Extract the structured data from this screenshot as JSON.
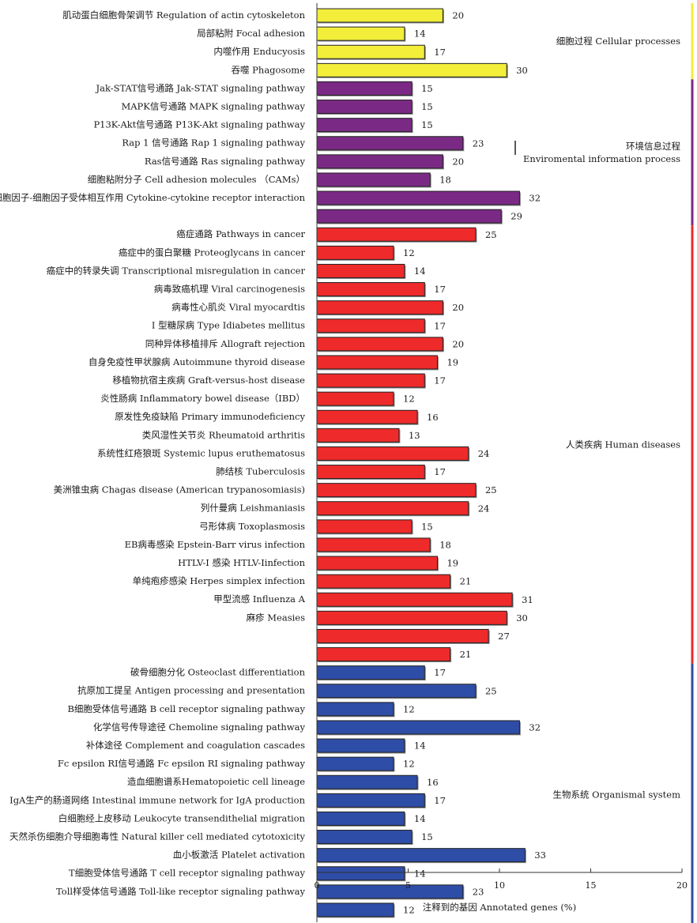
{
  "chart_data": {
    "type": "bar",
    "orientation": "horizontal",
    "xlabel": "注释到的基因 Annotated genes (%)",
    "ylabel": "",
    "xlim": [
      0,
      20
    ],
    "xticks": [
      0,
      5,
      10,
      15,
      20
    ],
    "grid": false,
    "groups": [
      {
        "name": "细胞过程 Cellular processes",
        "label_lines": [
          "细胞过程 Cellular processes"
        ],
        "color": "#f2ee3a",
        "items": [
          {
            "label": "肌动蛋白细胞骨架调节 Regulation of actin cytoskeleton",
            "value": 6.9,
            "count": 20
          },
          {
            "label": "局部粘附 Focal adhesion",
            "value": 4.8,
            "count": 14
          },
          {
            "label": "内噬作用 Enducyosis",
            "value": 5.9,
            "count": 17
          },
          {
            "label": "吞噬 Phagosome",
            "value": 10.4,
            "count": 30
          }
        ]
      },
      {
        "name": "环境信息过程 Enviromental information process",
        "label_lines": [
          "环境信息过程",
          "Enviromental information process"
        ],
        "color": "#7a2a84",
        "items": [
          {
            "label": "Jak-STAT信号通路 Jak-STAT signaling pathway",
            "value": 5.2,
            "count": 15
          },
          {
            "label": "MAPK信号通路 MAPK signaling pathway",
            "value": 5.2,
            "count": 15
          },
          {
            "label": "P13K-Akt信号通路 P13K-Akt signaling pathway",
            "value": 5.2,
            "count": 15
          },
          {
            "label": "Rap 1 信号通路 Rap 1 signaling pathway",
            "value": 8.0,
            "count": 23
          },
          {
            "label": "Ras信号通路 Ras signaling pathway",
            "value": 6.9,
            "count": 20
          },
          {
            "label": "细胞粘附分子 Cell adhesion molecules （CAMs）",
            "value": 6.2,
            "count": 18
          },
          {
            "label": "细胞因子-细胞因子受体相互作用 Cytokine-cytokine receptor interaction",
            "value": 11.1,
            "count": 32
          },
          {
            "label": "",
            "value": 10.1,
            "count": 29
          }
        ]
      },
      {
        "name": "人类疾病 Human diseases",
        "label_lines": [
          "人类疾病 Human diseases"
        ],
        "color": "#ee2a2a",
        "items": [
          {
            "label": "癌症通路 Pathways in cancer",
            "value": 8.7,
            "count": 25
          },
          {
            "label": "癌症中的蛋白聚糖 Proteoglycans in cancer",
            "value": 4.2,
            "count": 12
          },
          {
            "label": "癌症中的转录失调 Transcriptional misregulation in cancer",
            "value": 4.8,
            "count": 14
          },
          {
            "label": "病毒致癌机理 Viral carcinogenesis",
            "value": 5.9,
            "count": 17
          },
          {
            "label": "病毒性心肌炎 Viral myocardtis",
            "value": 6.9,
            "count": 20
          },
          {
            "label": "I 型糖尿病 Type Ⅰdiabetes mellitus",
            "value": 5.9,
            "count": 17
          },
          {
            "label": "同种异体移植排斥 Allograft rejection",
            "value": 6.9,
            "count": 20
          },
          {
            "label": "自身免疫性甲状腺病 Autoimmune thyroid disease",
            "value": 6.6,
            "count": 19
          },
          {
            "label": "移植物抗宿主疾病 Graft-versus-host disease",
            "value": 5.9,
            "count": 17
          },
          {
            "label": "炎性肠病 Inflammatory bowel disease（IBD）",
            "value": 4.2,
            "count": 12
          },
          {
            "label": "原发性免疫缺陷 Primary immunodeficiency",
            "value": 5.5,
            "count": 16
          },
          {
            "label": "类风湿性关节炎 Rheumatoid arthritis",
            "value": 4.5,
            "count": 13
          },
          {
            "label": "系统性红疮狼斑 Systemic lupus eruthematosus",
            "value": 8.3,
            "count": 24
          },
          {
            "label": "肺结核 Tuberculosis",
            "value": 5.9,
            "count": 17
          },
          {
            "label": "美洲锥虫病 Chagas disease (American trypanosomiasis)",
            "value": 8.7,
            "count": 25
          },
          {
            "label": "列什曼病 Leishmaniasis",
            "value": 8.3,
            "count": 24
          },
          {
            "label": "弓形体病 Toxoplasmosis",
            "value": 5.2,
            "count": 15
          },
          {
            "label": "EB病毒感染 Epstein-Barr virus infection",
            "value": 6.2,
            "count": 18
          },
          {
            "label": "HTLV-Ⅰ 感染 HTLV-Ⅰinfection",
            "value": 6.6,
            "count": 19
          },
          {
            "label": "单纯疱疹感染 Herpes simplex infection",
            "value": 7.3,
            "count": 21
          },
          {
            "label": "甲型流感 Influenza A",
            "value": 10.7,
            "count": 31
          },
          {
            "label": "麻疹 Measies",
            "value": 10.4,
            "count": 30
          },
          {
            "label": "",
            "value": 9.4,
            "count": 27
          },
          {
            "label": "",
            "value": 7.3,
            "count": 21
          }
        ]
      },
      {
        "name": "生物系统 Organismal system",
        "label_lines": [
          "生物系统 Organismal system"
        ],
        "color": "#2e4da6",
        "items": [
          {
            "label": "破骨细胞分化 Osteoclast differentiation",
            "value": 5.9,
            "count": 17
          },
          {
            "label": "抗原加工提呈 Antigen processing and presentation",
            "value": 8.7,
            "count": 25
          },
          {
            "label": "B细胞受体信号通路 B cell receptor signaling pathway",
            "value": 4.2,
            "count": 12
          },
          {
            "label": "化学信号传导途径 Chemoline signaling pathway",
            "value": 11.1,
            "count": 32
          },
          {
            "label": "补体途径 Complement and coagulation cascades",
            "value": 4.8,
            "count": 14
          },
          {
            "label": "Fc epsilon RI信号通路 Fc epsilon RI signaling pathway",
            "value": 4.2,
            "count": 12
          },
          {
            "label": "造血细胞谱系Hematopoietic cell lineage",
            "value": 5.5,
            "count": 16
          },
          {
            "label": "IgA生产的肠道网络 Intestinal immune network for IgA production",
            "value": 5.9,
            "count": 17
          },
          {
            "label": "白细胞经上皮移动 Leukocyte transendithelial migration",
            "value": 4.8,
            "count": 14
          },
          {
            "label": "天然杀伤细胞介导细胞毒性 Natural killer cell mediated cytotoxicity",
            "value": 5.2,
            "count": 15
          },
          {
            "label": "血小板激活 Platelet activation",
            "value": 11.4,
            "count": 33
          },
          {
            "label": "T细胞受体信号通路 T cell receptor signaling pathway",
            "value": 4.8,
            "count": 14
          },
          {
            "label": "Toll样受体信号通路 Toll-like receptor signaling pathway",
            "value": 8.0,
            "count": 23
          },
          {
            "label": "",
            "value": 4.2,
            "count": 12
          }
        ]
      }
    ]
  }
}
